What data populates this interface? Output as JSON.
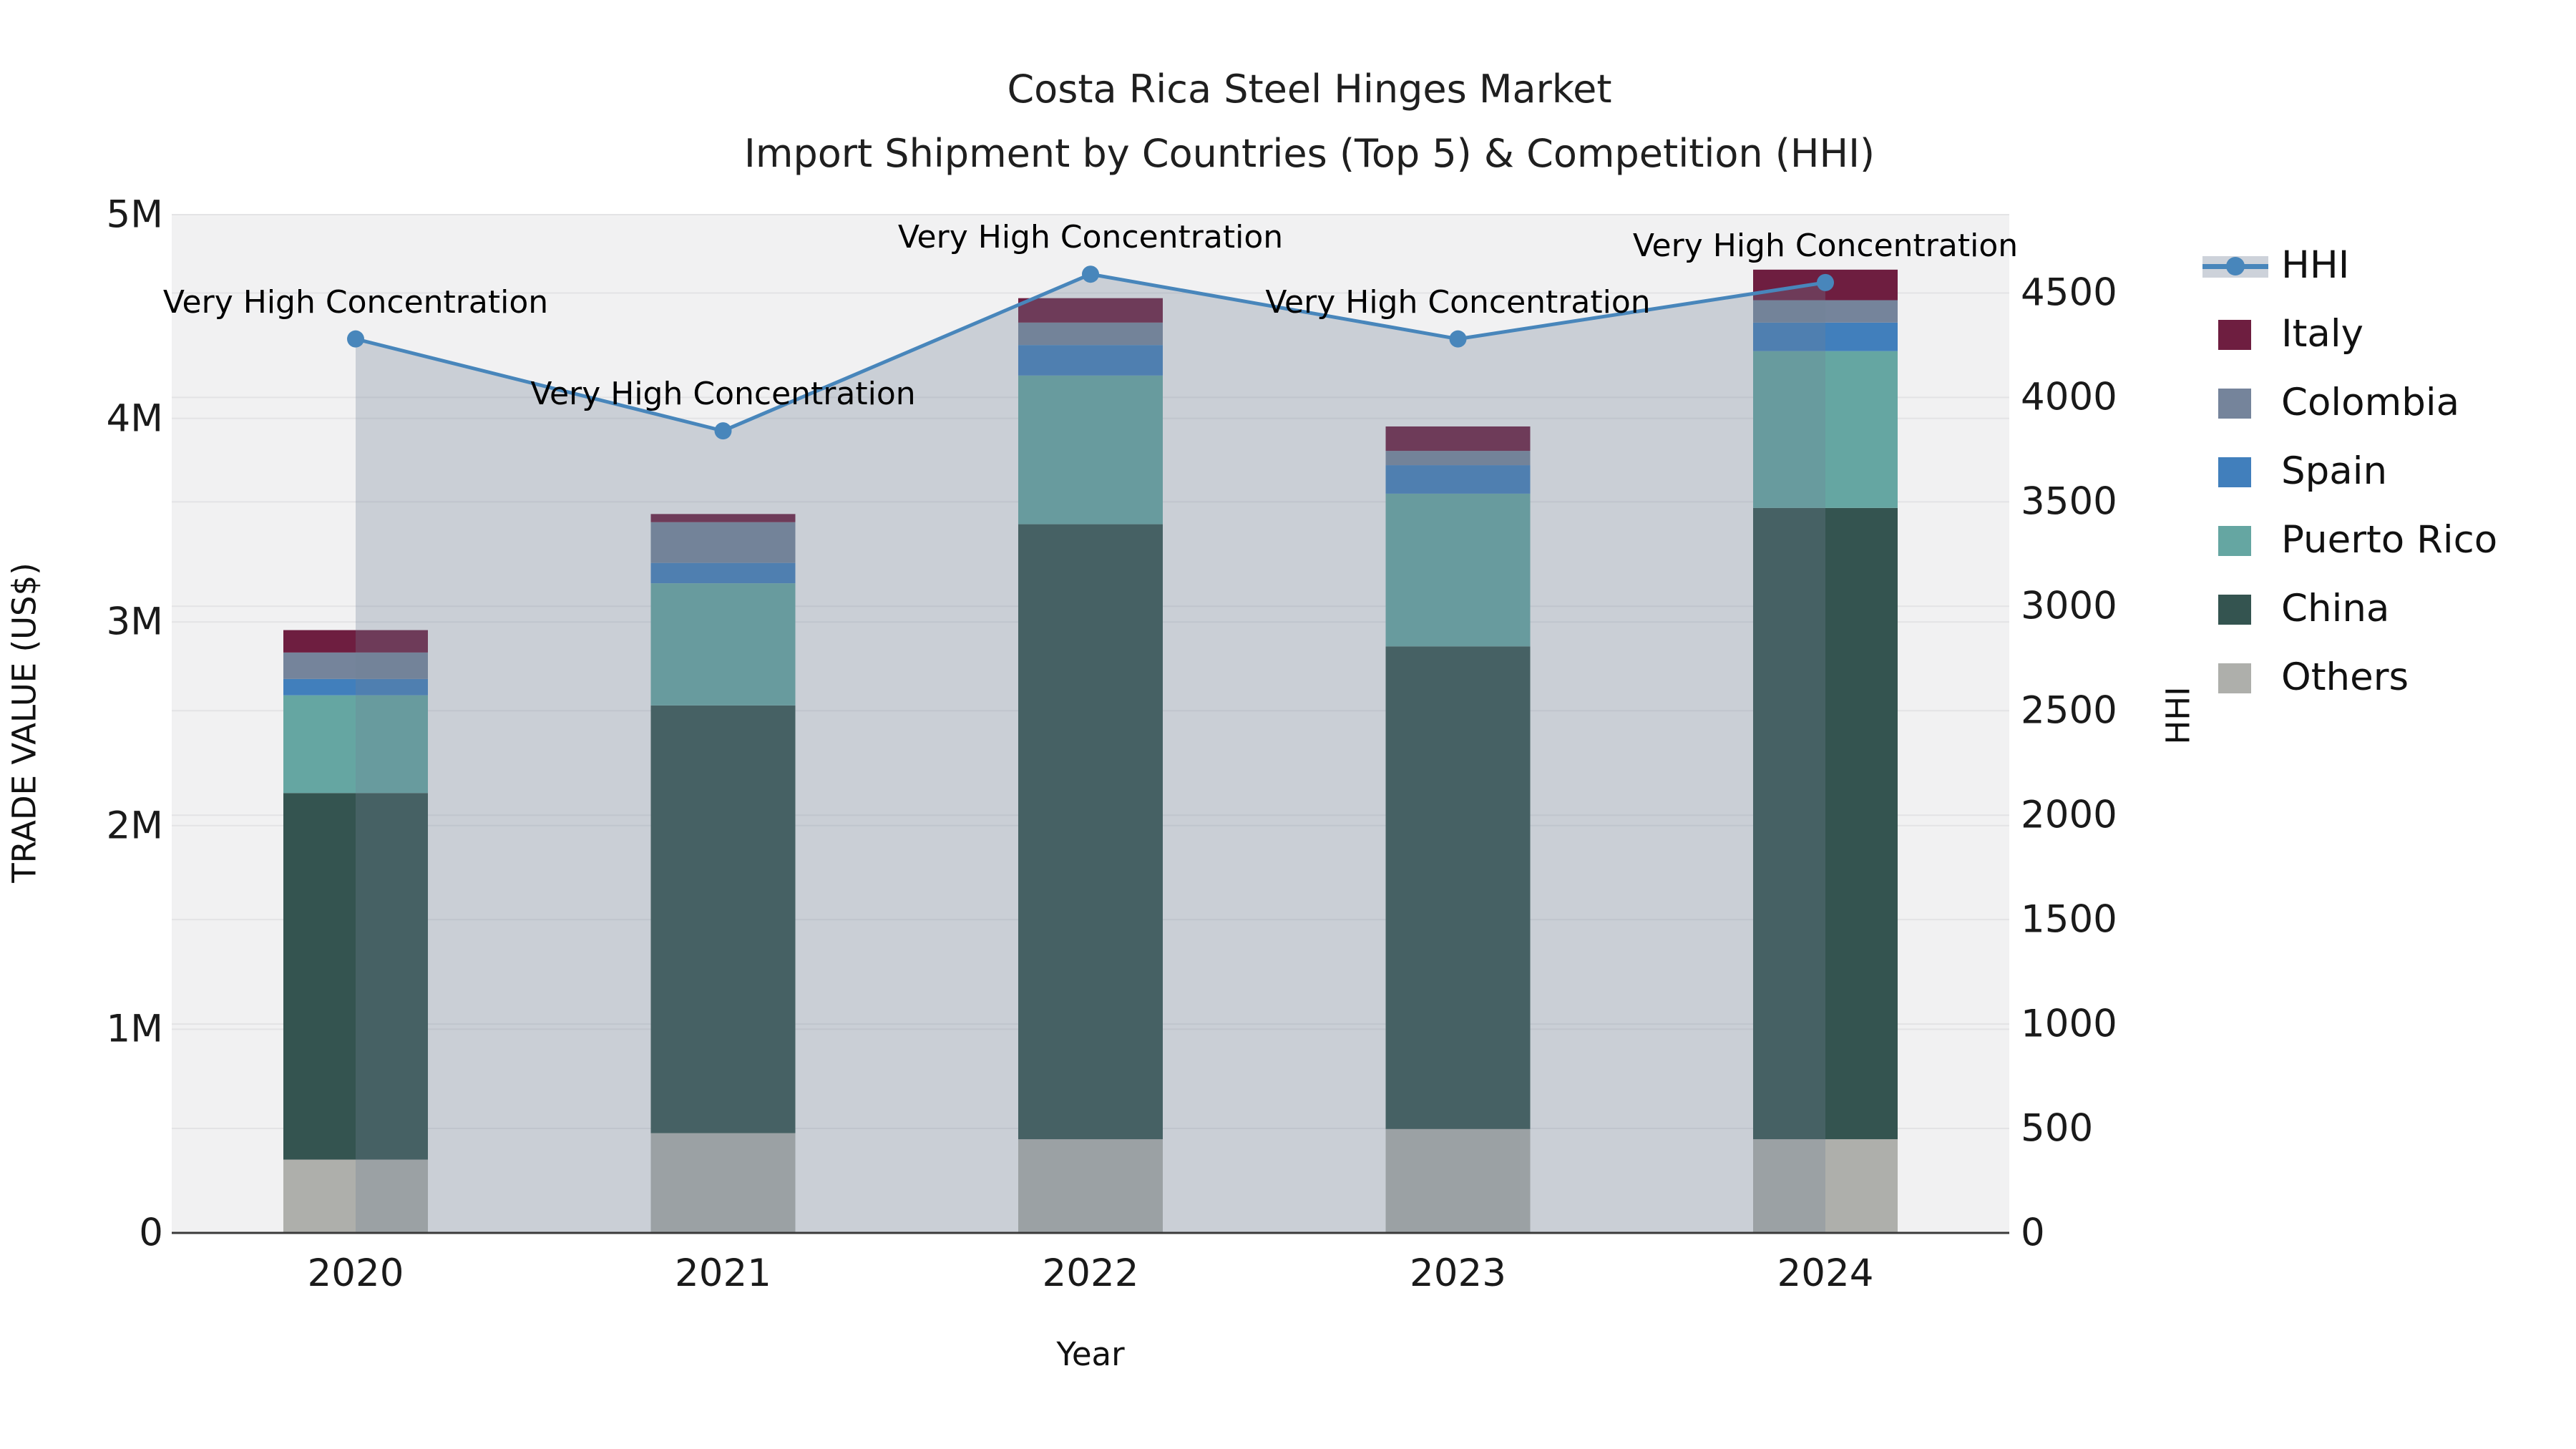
{
  "chart_data": {
    "type": "bar",
    "stacked": true,
    "title_line1": "Costa Rica Steel Hinges Market",
    "title_line2": "Import Shipment by Countries (Top 5) & Competition (HHI)",
    "xlabel": "Year",
    "ylabel_left": "TRADE VALUE (US$)",
    "ylabel_right": "HHI",
    "categories": [
      "2020",
      "2021",
      "2022",
      "2023",
      "2024"
    ],
    "series": [
      {
        "name": "Others",
        "color": "#aeafab",
        "values_musd": [
          0.36,
          0.49,
          0.46,
          0.51,
          0.46
        ]
      },
      {
        "name": "China",
        "color": "#345450",
        "values_musd": [
          1.8,
          2.1,
          3.02,
          2.37,
          3.1
        ]
      },
      {
        "name": "Puerto Rico",
        "color": "#65a6a2",
        "values_musd": [
          0.48,
          0.6,
          0.73,
          0.75,
          0.77
        ]
      },
      {
        "name": "Spain",
        "color": "#417fbc",
        "values_musd": [
          0.08,
          0.1,
          0.15,
          0.14,
          0.14
        ]
      },
      {
        "name": "Colombia",
        "color": "#75849b",
        "values_musd": [
          0.13,
          0.2,
          0.11,
          0.07,
          0.11
        ]
      },
      {
        "name": "Italy",
        "color": "#6e1e40",
        "values_musd": [
          0.11,
          0.04,
          0.12,
          0.12,
          0.15
        ]
      }
    ],
    "bar_totals_musd": [
      2.96,
      3.53,
      4.59,
      3.96,
      4.73
    ],
    "overlay_line": {
      "name": "HHI",
      "color": "#4886bb",
      "area_color": "rgba(112,128,148,0.30)",
      "values": [
        4280,
        3840,
        4590,
        4280,
        4550
      ],
      "annotations": [
        "Very High Concentration",
        "Very High Concentration",
        "Very High Concentration",
        "Very High Concentration",
        "Very High Concentration"
      ]
    },
    "y_left": {
      "lim_musd": [
        0,
        5
      ],
      "tick_values_musd": [
        0,
        1,
        2,
        3,
        4,
        5
      ],
      "tick_labels": [
        "0",
        "1M",
        "2M",
        "3M",
        "4M",
        "5M"
      ]
    },
    "y_right": {
      "lim": [
        0,
        4875
      ],
      "tick_values": [
        0,
        500,
        1000,
        1500,
        2000,
        2500,
        3000,
        3500,
        4000,
        4500
      ],
      "tick_labels": [
        "0",
        "500",
        "1000",
        "1500",
        "2000",
        "2500",
        "3000",
        "3500",
        "4000",
        "4500"
      ]
    },
    "legend": [
      {
        "label": "HHI",
        "kind": "line",
        "color": "#4886bb"
      },
      {
        "label": "Italy",
        "kind": "patch",
        "color": "#6e1e40"
      },
      {
        "label": "Colombia",
        "kind": "patch",
        "color": "#75849b"
      },
      {
        "label": "Spain",
        "kind": "patch",
        "color": "#417fbc"
      },
      {
        "label": "Puerto Rico",
        "kind": "patch",
        "color": "#65a6a2"
      },
      {
        "label": "China",
        "kind": "patch",
        "color": "#345450"
      },
      {
        "label": "Others",
        "kind": "patch",
        "color": "#aeafab"
      }
    ],
    "style": {
      "plot_bg": "#f1f1f2",
      "gridline": "#e3e3e5",
      "spine": "#3a3a3a",
      "grid_on": true,
      "legend_position": "right-outside"
    }
  }
}
